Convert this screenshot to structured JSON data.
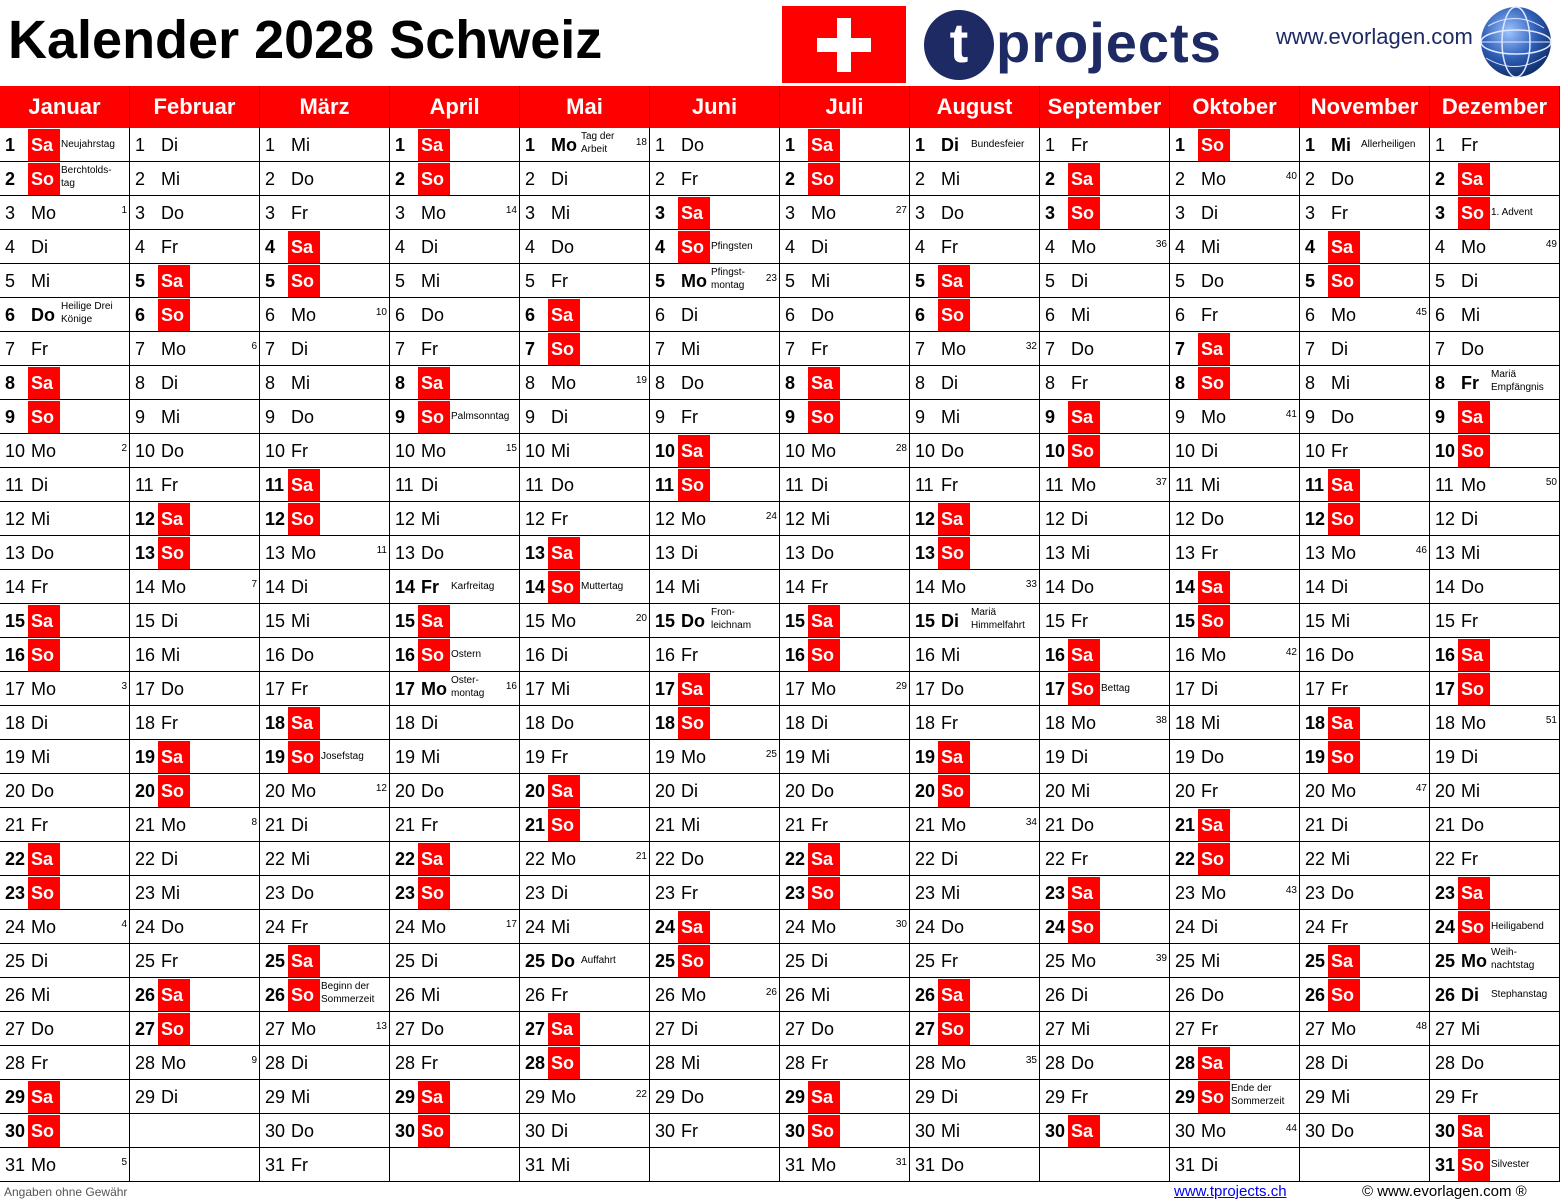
{
  "title": "Kalender 2028 Schweiz",
  "logo": {
    "letter": "t",
    "rest": "projects"
  },
  "website": "www.evorlagen.com",
  "colors": {
    "accent": "#ff0000",
    "brand": "#1d2a63"
  },
  "months": [
    {
      "name": "Januar",
      "startDow": 6,
      "days": 31
    },
    {
      "name": "Februar",
      "startDow": 2,
      "days": 29
    },
    {
      "name": "März",
      "startDow": 3,
      "days": 31
    },
    {
      "name": "April",
      "startDow": 6,
      "days": 30
    },
    {
      "name": "Mai",
      "startDow": 1,
      "days": 31
    },
    {
      "name": "Juni",
      "startDow": 4,
      "days": 30
    },
    {
      "name": "Juli",
      "startDow": 6,
      "days": 31
    },
    {
      "name": "August",
      "startDow": 2,
      "days": 31
    },
    {
      "name": "September",
      "startDow": 5,
      "days": 30
    },
    {
      "name": "Oktober",
      "startDow": 0,
      "days": 31
    },
    {
      "name": "November",
      "startDow": 3,
      "days": 30
    },
    {
      "name": "Dezember",
      "startDow": 5,
      "days": 31
    }
  ],
  "weekday_names": [
    "So",
    "Mo",
    "Di",
    "Mi",
    "Do",
    "Fr",
    "Sa"
  ],
  "holidays": {
    "0-1": "Neujahrstag",
    "0-2": "Berchtolds-\ntag",
    "0-6": "Heilige Drei\nKönige",
    "2-19": "Josefstag",
    "2-26": "Beginn der\nSommerzeit",
    "3-9": "Palmsonntag",
    "3-14": "Karfreitag",
    "3-16": "Ostern",
    "3-17": "Oster-\nmontag",
    "4-1": "Tag der\nArbeit",
    "4-14": "Muttertag",
    "4-25": "Auffahrt",
    "5-4": "Pfingsten",
    "5-5": "Pfingst-\nmontag",
    "5-15": "Fron-\nleichnam",
    "7-1": "Bundesfeier",
    "7-15": "Mariä\nHimmelfahrt",
    "8-17": "Bettag",
    "9-29": "Ende der\nSommerzeit",
    "10-1": "Allerheiligen",
    "11-3": "1. Advent",
    "11-8": "Mariä\nEmpfängnis",
    "11-24": "Heiligabend",
    "11-25": "Weih-\nnachtstag",
    "11-26": "Stephanstag",
    "11-31": "Silvester"
  },
  "bold_days": [
    "0-6",
    "3-14",
    "3-17",
    "4-1",
    "4-25",
    "5-5",
    "5-15",
    "7-1",
    "7-15",
    "10-1",
    "11-8",
    "11-25",
    "11-26"
  ],
  "week_numbers": {
    "0-3": "1",
    "0-10": "2",
    "0-17": "3",
    "0-24": "4",
    "0-31": "5",
    "1-7": "6",
    "1-14": "7",
    "1-21": "8",
    "1-28": "9",
    "2-6": "10",
    "2-13": "11",
    "2-20": "12",
    "2-27": "13",
    "3-3": "14",
    "3-10": "15",
    "3-17": "16",
    "3-24": "17",
    "4-1": "18",
    "4-8": "19",
    "4-15": "20",
    "4-22": "21",
    "4-29": "22",
    "5-5": "23",
    "5-12": "24",
    "5-19": "25",
    "5-26": "26",
    "6-3": "27",
    "6-10": "28",
    "6-17": "29",
    "6-24": "30",
    "6-31": "31",
    "7-7": "32",
    "7-14": "33",
    "7-21": "34",
    "7-28": "35",
    "8-4": "36",
    "8-11": "37",
    "8-18": "38",
    "8-25": "39",
    "9-2": "40",
    "9-9": "41",
    "9-16": "42",
    "9-23": "43",
    "9-30": "44",
    "10-6": "45",
    "10-13": "46",
    "10-20": "47",
    "10-27": "48",
    "11-4": "49",
    "11-11": "50",
    "11-18": "51"
  },
  "footer": {
    "disclaimer": "Angaben ohne Gewähr",
    "link": "www.tprojects.ch",
    "copyright": "© www.evorlagen.com ®"
  }
}
